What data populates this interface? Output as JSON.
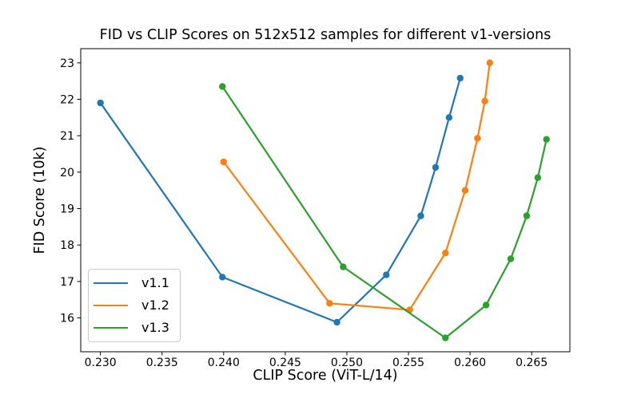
{
  "chart_data": {
    "type": "line",
    "title": "FID vs CLIP Scores on 512x512 samples for different v1-versions",
    "xlabel": "CLIP Score (ViT-L/14)",
    "ylabel": "FID Score (10k)",
    "xlim": [
      0.2284,
      0.2681
    ],
    "ylim": [
      15.07,
      23.39
    ],
    "xticks": [
      0.23,
      0.235,
      0.24,
      0.245,
      0.25,
      0.255,
      0.26,
      0.265
    ],
    "yticks": [
      16,
      17,
      18,
      19,
      20,
      21,
      22,
      23
    ],
    "grid": false,
    "legend_position": "lower-left",
    "marker": "circle",
    "axis_color": "#000000",
    "series": [
      {
        "name": "v1.1",
        "color": "#1f77b4",
        "points": [
          [
            0.23,
            21.9
          ],
          [
            0.2399,
            17.12
          ],
          [
            0.2492,
            15.88
          ],
          [
            0.2532,
            17.18
          ],
          [
            0.256,
            18.8
          ],
          [
            0.2572,
            20.13
          ],
          [
            0.2583,
            21.5
          ],
          [
            0.2592,
            22.58
          ]
        ]
      },
      {
        "name": "v1.2",
        "color": "#ff7f0e",
        "points": [
          [
            0.24,
            20.28
          ],
          [
            0.2486,
            16.4
          ],
          [
            0.2551,
            16.22
          ],
          [
            0.258,
            17.78
          ],
          [
            0.2596,
            19.5
          ],
          [
            0.2606,
            20.93
          ],
          [
            0.2612,
            21.95
          ],
          [
            0.2616,
            23.0
          ]
        ]
      },
      {
        "name": "v1.3",
        "color": "#2ca02c",
        "points": [
          [
            0.2399,
            22.35
          ],
          [
            0.2497,
            17.4
          ],
          [
            0.258,
            15.45
          ],
          [
            0.2613,
            16.35
          ],
          [
            0.2633,
            17.62
          ],
          [
            0.2646,
            18.8
          ],
          [
            0.2655,
            19.85
          ],
          [
            0.2662,
            20.9
          ]
        ]
      }
    ]
  }
}
